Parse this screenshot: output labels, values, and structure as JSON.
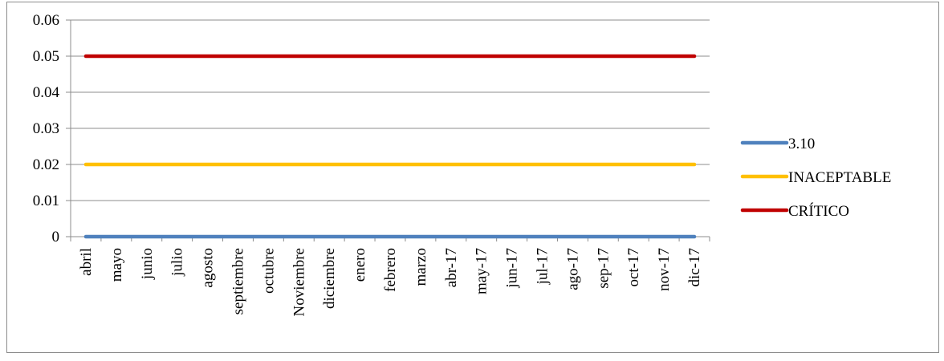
{
  "chart_data": {
    "type": "line",
    "title": "",
    "xlabel": "",
    "ylabel": "",
    "ylim": [
      0,
      0.06
    ],
    "yticks": [
      "0",
      "0.01",
      "0.02",
      "0.03",
      "0.04",
      "0.05",
      "0.06"
    ],
    "ytick_values": [
      0,
      0.01,
      0.02,
      0.03,
      0.04,
      0.05,
      0.06
    ],
    "categories": [
      "abril",
      "mayo",
      "junio",
      "julio",
      "agosto",
      "septiembre",
      "octubre",
      "Noviembre",
      "diciembre",
      "enero",
      "febrero",
      "marzo",
      "abr-17",
      "may-17",
      "jun-17",
      "jul-17",
      "ago-17",
      "sep-17",
      "oct-17",
      "nov-17",
      "dic-17"
    ],
    "grid": true,
    "legend_position": "right",
    "series": [
      {
        "name": "3.10",
        "color": "#4f81bd",
        "values": [
          0,
          0,
          0,
          0,
          0,
          0,
          0,
          0,
          0,
          0,
          0,
          0,
          0,
          0,
          0,
          0,
          0,
          0,
          0,
          0,
          0
        ]
      },
      {
        "name": "INACEPTABLE",
        "color": "#ffc000",
        "values": [
          0.02,
          0.02,
          0.02,
          0.02,
          0.02,
          0.02,
          0.02,
          0.02,
          0.02,
          0.02,
          0.02,
          0.02,
          0.02,
          0.02,
          0.02,
          0.02,
          0.02,
          0.02,
          0.02,
          0.02,
          0.02
        ]
      },
      {
        "name": "CRÍTICO",
        "color": "#c00000",
        "values": [
          0.05,
          0.05,
          0.05,
          0.05,
          0.05,
          0.05,
          0.05,
          0.05,
          0.05,
          0.05,
          0.05,
          0.05,
          0.05,
          0.05,
          0.05,
          0.05,
          0.05,
          0.05,
          0.05,
          0.05,
          0.05
        ]
      }
    ]
  }
}
